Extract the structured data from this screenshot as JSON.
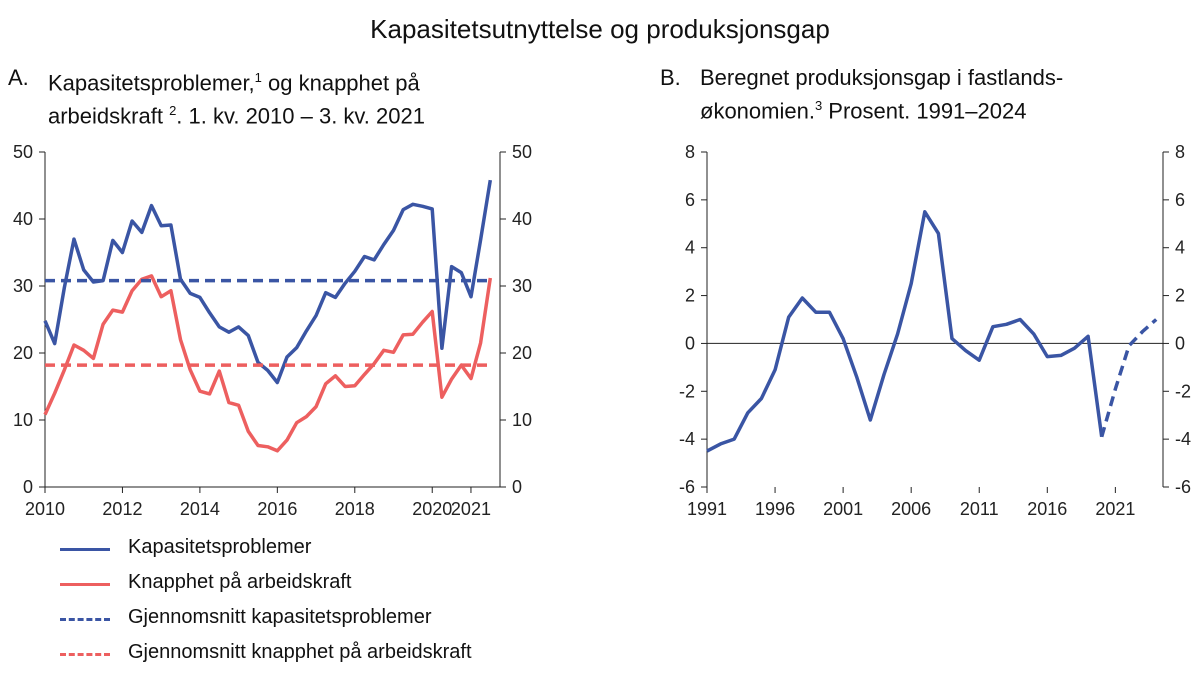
{
  "title": "Kapasitetsutnyttelse og produksjonsgap",
  "colors": {
    "blue": "#3a55a4",
    "red": "#ed5f5f",
    "axis": "#222222"
  },
  "panels": {
    "a": {
      "letter": "A.",
      "title_line1": "Kapasitetsproblemer,",
      "title_sup1": "1",
      "title_line1b": " og knapphet på",
      "title_line2": "arbeidskraft ",
      "title_sup2": "2",
      "title_line2b": ". 1. kv. 2010 – 3. kv. 2021"
    },
    "b": {
      "letter": "B.",
      "title_line1": "Beregnet produksjonsgap i fastlands-",
      "title_line2": "økonomien.",
      "title_sup2": "3",
      "title_line2b": " Prosent. 1991–2024"
    }
  },
  "legend": [
    {
      "label": "Kapasitetsproblemer",
      "style": "solid",
      "color": "#3a55a4"
    },
    {
      "label": "Knapphet på arbeidskraft",
      "style": "solid",
      "color": "#ed5f5f"
    },
    {
      "label": "Gjennomsnitt kapasitetsproblemer",
      "style": "dashed",
      "color": "#3a55a4"
    },
    {
      "label": "Gjennomsnitt knapphet på arbeidskraft",
      "style": "dashed",
      "color": "#ed5f5f"
    }
  ],
  "chart_data": [
    {
      "type": "line",
      "ylim": [
        0,
        50
      ],
      "yticks": [
        0,
        10,
        20,
        30,
        40,
        50
      ],
      "xlim": [
        2010,
        2021.75
      ],
      "xticks": [
        "2010",
        "2012",
        "2014",
        "2016",
        "2018",
        "2020",
        "2021"
      ],
      "series": [
        {
          "name": "Kapasitetsproblemer",
          "color": "#3a55a4",
          "style": "solid",
          "x": [
            2010.0,
            2010.25,
            2010.5,
            2010.75,
            2011.0,
            2011.25,
            2011.5,
            2011.75,
            2012.0,
            2012.25,
            2012.5,
            2012.75,
            2013.0,
            2013.25,
            2013.5,
            2013.75,
            2014.0,
            2014.25,
            2014.5,
            2014.75,
            2015.0,
            2015.25,
            2015.5,
            2015.75,
            2016.0,
            2016.25,
            2016.5,
            2016.75,
            2017.0,
            2017.25,
            2017.5,
            2017.75,
            2018.0,
            2018.25,
            2018.5,
            2018.75,
            2019.0,
            2019.25,
            2019.5,
            2019.75,
            2020.0,
            2020.25,
            2020.5,
            2020.75,
            2021.0,
            2021.25,
            2021.5
          ],
          "y": [
            24.8,
            21.4,
            29.8,
            37.0,
            32.4,
            30.6,
            30.8,
            36.8,
            35.0,
            39.7,
            38.0,
            42.0,
            39.0,
            39.1,
            31.0,
            28.9,
            28.3,
            26.0,
            23.9,
            23.1,
            23.9,
            22.6,
            18.6,
            17.4,
            15.6,
            19.4,
            20.8,
            23.3,
            25.6,
            29.0,
            28.3,
            30.4,
            32.2,
            34.4,
            33.9,
            36.2,
            38.3,
            41.4,
            42.2,
            41.9,
            41.5,
            20.7,
            32.9,
            32.0,
            28.4,
            36.9,
            45.8
          ]
        },
        {
          "name": "Knapphet på arbeidskraft",
          "color": "#ed5f5f",
          "style": "solid",
          "x": [
            2010.0,
            2010.25,
            2010.5,
            2010.75,
            2011.0,
            2011.25,
            2011.5,
            2011.75,
            2012.0,
            2012.25,
            2012.5,
            2012.75,
            2013.0,
            2013.25,
            2013.5,
            2013.75,
            2014.0,
            2014.25,
            2014.5,
            2014.75,
            2015.0,
            2015.25,
            2015.5,
            2015.75,
            2016.0,
            2016.25,
            2016.5,
            2016.75,
            2017.0,
            2017.25,
            2017.5,
            2017.75,
            2018.0,
            2018.25,
            2018.5,
            2018.75,
            2019.0,
            2019.25,
            2019.5,
            2019.75,
            2020.0,
            2020.25,
            2020.5,
            2020.75,
            2021.0,
            2021.25,
            2021.5
          ],
          "y": [
            10.8,
            14.0,
            17.5,
            21.2,
            20.4,
            19.2,
            24.3,
            26.4,
            26.1,
            29.3,
            31.0,
            31.5,
            28.4,
            29.3,
            22.0,
            17.5,
            14.3,
            13.9,
            17.3,
            12.6,
            12.2,
            8.3,
            6.2,
            6.0,
            5.4,
            7.0,
            9.6,
            10.5,
            12.0,
            15.4,
            16.6,
            15.0,
            15.1,
            16.8,
            18.4,
            20.4,
            20.1,
            22.7,
            22.8,
            24.6,
            26.2,
            13.4,
            16.1,
            18.2,
            16.2,
            21.5,
            31.2
          ]
        },
        {
          "name": "Gjennomsnitt kapasitetsproblemer",
          "color": "#3a55a4",
          "style": "dashed",
          "x": [
            2010.0,
            2021.5
          ],
          "y": [
            30.8,
            30.8
          ]
        },
        {
          "name": "Gjennomsnitt knapphet på arbeidskraft",
          "color": "#ed5f5f",
          "style": "dashed",
          "x": [
            2010.0,
            2021.5
          ],
          "y": [
            18.2,
            18.2
          ]
        }
      ]
    },
    {
      "type": "line",
      "ylim": [
        -6,
        8
      ],
      "yticks": [
        -6,
        -4,
        -2,
        0,
        2,
        4,
        6,
        8
      ],
      "xlim": [
        1991,
        2024.5
      ],
      "xticks": [
        "1991",
        "1996",
        "2001",
        "2006",
        "2011",
        "2016",
        "2021"
      ],
      "series": [
        {
          "color": "#3a55a4",
          "style": "solid",
          "x": [
            1991,
            1992,
            1993,
            1994,
            1995,
            1996,
            1997,
            1998,
            1999,
            2000,
            2001,
            2002,
            2003,
            2004,
            2005,
            2006,
            2007,
            2008,
            2009,
            2010,
            2011,
            2012,
            2013,
            2014,
            2015,
            2016,
            2017,
            2018,
            2019,
            2020
          ],
          "y": [
            -4.5,
            -4.2,
            -4.0,
            -2.9,
            -2.3,
            -1.1,
            1.1,
            1.9,
            1.3,
            1.3,
            0.2,
            -1.4,
            -3.2,
            -1.3,
            0.4,
            2.5,
            5.5,
            4.6,
            0.2,
            -0.3,
            -0.7,
            0.7,
            0.8,
            1.0,
            0.4,
            -0.55,
            -0.5,
            -0.2,
            0.3,
            -3.9
          ]
        },
        {
          "color": "#3a55a4",
          "style": "dashed",
          "x": [
            2020,
            2021,
            2022,
            2023,
            2024
          ],
          "y": [
            -3.9,
            -1.9,
            -0.1,
            0.5,
            1.0
          ]
        }
      ]
    }
  ]
}
